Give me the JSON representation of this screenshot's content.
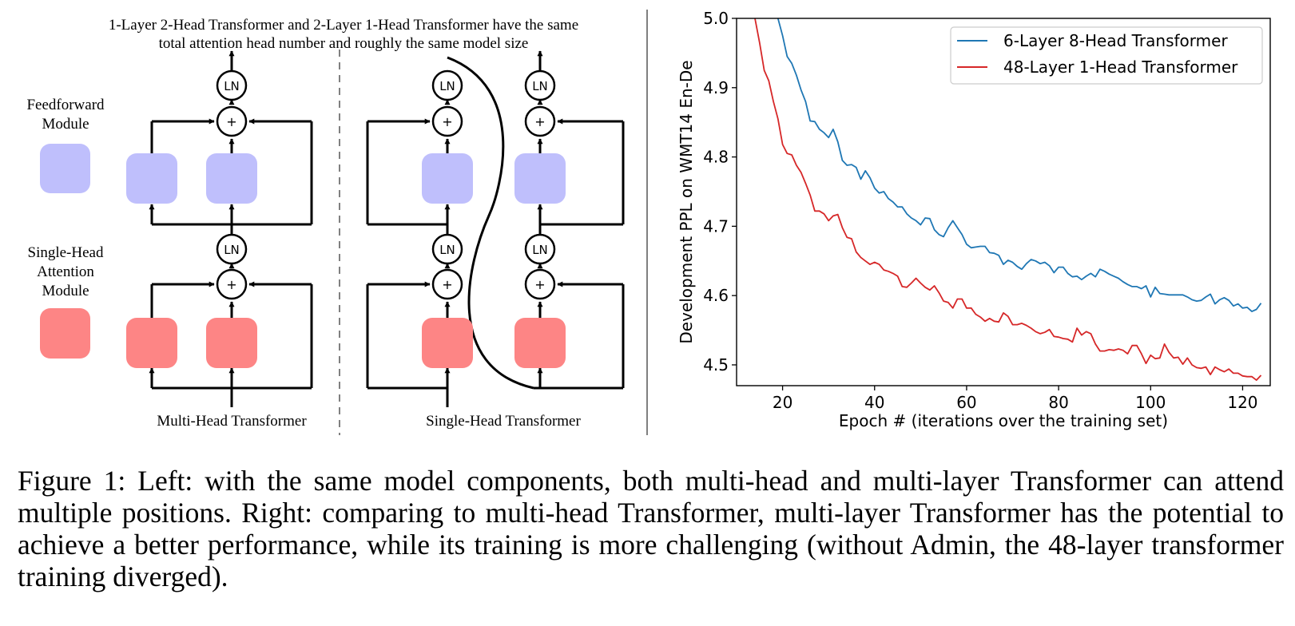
{
  "diagram": {
    "title_line1": "1-Layer 2-Head Transformer and 2-Layer 1-Head Transformer have the same",
    "title_line2": "total attention head number and roughly the same model size",
    "legend_ff_line1": "Feedforward",
    "legend_ff_line2": "Module",
    "legend_attn_line1": "Single-Head",
    "legend_attn_line2": "Attention",
    "legend_attn_line3": "Module",
    "ln_label": "LN",
    "plus_label": "+",
    "multi_head_label": "Multi-Head Transformer",
    "single_head_label": "Single-Head Transformer",
    "colors": {
      "feedforward": "#bfbffc",
      "attention": "#fd8585",
      "stroke": "#000000",
      "divider": "#808080"
    }
  },
  "chart_data": {
    "type": "line",
    "xlabel": "Epoch # (iterations over the training set)",
    "ylabel": "Development PPL on WMT14 En-De",
    "xlim": [
      10,
      126
    ],
    "ylim": [
      4.47,
      5.0
    ],
    "xticks": [
      20,
      40,
      60,
      80,
      100,
      120
    ],
    "yticks": [
      4.5,
      4.6,
      4.7,
      4.8,
      4.9,
      5.0
    ],
    "xtick_labels": [
      "20",
      "40",
      "60",
      "80",
      100,
      120
    ],
    "ytick_labels": [
      "4.5",
      "4.6",
      "4.7",
      "4.8",
      "4.9",
      "5.0"
    ],
    "grid": false,
    "legend_position": "top-right",
    "series": [
      {
        "name": "6-Layer 8-Head Transformer",
        "color": "#1f77b4",
        "x": [
          19,
          20,
          21,
          22,
          23,
          24,
          25,
          26,
          27,
          28,
          29,
          30,
          31,
          32,
          33,
          34,
          35,
          36,
          37,
          38,
          39,
          40,
          41,
          42,
          43,
          44,
          45,
          46,
          47,
          48,
          49,
          50,
          51,
          52,
          53,
          54,
          55,
          56,
          57,
          58,
          59,
          60,
          61,
          62,
          63,
          64,
          65,
          66,
          67,
          68,
          69,
          70,
          71,
          72,
          73,
          74,
          75,
          76,
          77,
          78,
          79,
          80,
          81,
          82,
          83,
          84,
          85,
          86,
          87,
          88,
          89,
          90,
          91,
          92,
          93,
          94,
          95,
          96,
          97,
          98,
          99,
          100,
          101,
          102,
          103,
          104,
          105,
          106,
          107,
          108,
          109,
          110,
          111,
          112,
          113,
          114,
          115,
          116,
          117,
          118,
          119,
          120,
          121,
          122,
          123,
          124
        ],
        "values": [
          5.0,
          4.975,
          4.945,
          4.935,
          4.918,
          4.897,
          4.88,
          4.852,
          4.851,
          4.84,
          4.835,
          4.828,
          4.84,
          4.822,
          4.795,
          4.788,
          4.789,
          4.785,
          4.768,
          4.78,
          4.77,
          4.755,
          4.748,
          4.75,
          4.74,
          4.735,
          4.728,
          4.728,
          4.718,
          4.712,
          4.708,
          4.702,
          4.712,
          4.711,
          4.695,
          4.688,
          4.685,
          4.698,
          4.708,
          4.698,
          4.688,
          4.674,
          4.669,
          4.67,
          4.671,
          4.671,
          4.662,
          4.661,
          4.658,
          4.645,
          4.651,
          4.648,
          4.642,
          4.638,
          4.646,
          4.652,
          4.65,
          4.646,
          4.648,
          4.643,
          4.633,
          4.641,
          4.641,
          4.632,
          4.627,
          4.628,
          4.623,
          4.628,
          4.632,
          4.627,
          4.638,
          4.635,
          4.631,
          4.628,
          4.625,
          4.62,
          4.616,
          4.613,
          4.613,
          4.61,
          4.614,
          4.598,
          4.612,
          4.603,
          4.602,
          4.601,
          4.601,
          4.601,
          4.601,
          4.598,
          4.594,
          4.592,
          4.593,
          4.598,
          4.602,
          4.588,
          4.594,
          4.597,
          4.593,
          4.585,
          4.588,
          4.582,
          4.583,
          4.577,
          4.58,
          4.589
        ],
        "values_hidden_note": null
      },
      {
        "name": "48-Layer 1-Head Transformer",
        "color": "#d62728",
        "x": [
          14,
          15,
          16,
          17,
          18,
          19,
          20,
          21,
          22,
          23,
          24,
          25,
          26,
          27,
          28,
          29,
          30,
          31,
          32,
          33,
          34,
          35,
          36,
          37,
          38,
          39,
          40,
          41,
          42,
          43,
          44,
          45,
          46,
          47,
          48,
          49,
          50,
          51,
          52,
          53,
          54,
          55,
          56,
          57,
          58,
          59,
          60,
          61,
          62,
          63,
          64,
          65,
          66,
          67,
          68,
          69,
          70,
          71,
          72,
          73,
          74,
          75,
          76,
          77,
          78,
          79,
          80,
          81,
          82,
          83,
          84,
          85,
          86,
          87,
          88,
          89,
          90,
          91,
          92,
          93,
          94,
          95,
          96,
          97,
          98,
          99,
          100,
          101,
          102,
          103,
          104,
          105,
          106,
          107,
          108,
          109,
          110,
          111,
          112,
          113,
          114,
          115,
          116,
          117,
          118,
          119,
          120,
          121,
          122,
          123,
          124
        ],
        "values": [
          5.0,
          4.965,
          4.925,
          4.91,
          4.88,
          4.855,
          4.818,
          4.805,
          4.803,
          4.788,
          4.778,
          4.762,
          4.745,
          4.722,
          4.722,
          4.718,
          4.708,
          4.715,
          4.717,
          4.698,
          4.684,
          4.682,
          4.663,
          4.655,
          4.65,
          4.645,
          4.648,
          4.645,
          4.637,
          4.635,
          4.632,
          4.628,
          4.613,
          4.612,
          4.618,
          4.625,
          4.618,
          4.612,
          4.608,
          4.614,
          4.604,
          4.592,
          4.59,
          4.582,
          4.595,
          4.595,
          4.582,
          4.582,
          4.573,
          4.569,
          4.563,
          4.567,
          4.563,
          4.562,
          4.575,
          4.57,
          4.558,
          4.558,
          4.56,
          4.557,
          4.553,
          4.548,
          4.545,
          4.547,
          4.551,
          4.541,
          4.54,
          4.538,
          4.537,
          4.533,
          4.553,
          4.543,
          4.548,
          4.545,
          4.53,
          4.52,
          4.52,
          4.522,
          4.521,
          4.523,
          4.521,
          4.516,
          4.528,
          4.528,
          4.516,
          4.502,
          4.514,
          4.509,
          4.51,
          4.53,
          4.518,
          4.51,
          4.511,
          4.501,
          4.51,
          4.5,
          4.496,
          4.495,
          4.497,
          4.486,
          4.497,
          4.493,
          4.49,
          4.494,
          4.488,
          4.488,
          4.484,
          4.483,
          4.483,
          4.478,
          4.485
        ]
      }
    ]
  },
  "caption": "Figure 1: Left: with the same model components, both multi-head and multi-layer Transformer can attend multiple positions. Right: comparing to multi-head Transformer, multi-layer Transformer has the potential to achieve a better performance, while its training is more challenging (without Admin, the 48-layer transformer training diverged)."
}
